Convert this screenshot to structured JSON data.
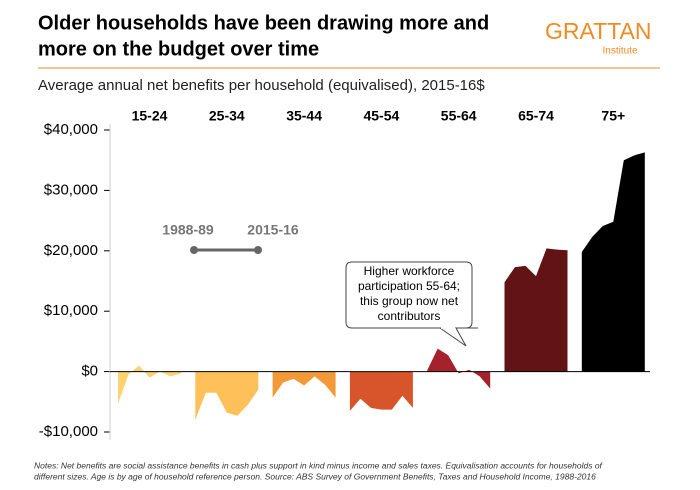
{
  "chart_data": {
    "type": "area-panels",
    "title": [
      "Older households have been drawing more and",
      "more on the budget over time"
    ],
    "subtitle": "Average annual net benefits per household (equivalised), 2015-16$",
    "logo": {
      "name": "GRATTAN",
      "sub": "Institute"
    },
    "categories": [
      "1988-89",
      null,
      null,
      null,
      null,
      null,
      "2015-16"
    ],
    "series": [
      {
        "name": "15-24",
        "color": "#fcd36f",
        "values": [
          -5300,
          -500,
          1000,
          -1000,
          0,
          -800,
          -300
        ]
      },
      {
        "name": "25-34",
        "color": "#fec15a",
        "values": [
          -8000,
          -3500,
          -3500,
          -6800,
          -7300,
          -5500,
          -3000
        ]
      },
      {
        "name": "35-44",
        "color": "#f39a38",
        "values": [
          -4300,
          -1800,
          -1200,
          -2300,
          -800,
          -2200,
          -4300
        ]
      },
      {
        "name": "45-54",
        "color": "#d8552b",
        "values": [
          -6500,
          -4500,
          -6000,
          -6300,
          -6300,
          -4000,
          -6000
        ]
      },
      {
        "name": "55-64",
        "color": "#a5212b",
        "values": [
          200,
          3800,
          2700,
          -300,
          300,
          -800,
          -2800
        ]
      },
      {
        "name": "65-74",
        "color": "#621316",
        "values": [
          14800,
          17300,
          17500,
          15800,
          20400,
          20200,
          20100
        ]
      },
      {
        "name": "75+",
        "color": "#000000",
        "values": [
          19800,
          22300,
          24100,
          24800,
          35000,
          35800,
          36300
        ]
      }
    ],
    "ylim": [
      -13000,
      41000
    ],
    "yticks": [
      {
        "value": -10000,
        "label": "-$10,000"
      },
      {
        "value": 0,
        "label": "$0"
      },
      {
        "value": 10000,
        "label": "$10,000"
      },
      {
        "value": 20000,
        "label": "$20,000"
      },
      {
        "value": 30000,
        "label": "$30,000"
      },
      {
        "value": 40000,
        "label": "$40,000"
      }
    ],
    "annotation": [
      "Higher workforce",
      "participation 55-64;",
      "this group now net",
      "contributors"
    ],
    "notes": [
      "Notes: Net benefits are social assistance benefits in cash plus support in kind minus income and sales taxes. Equivalisation accounts for households of",
      "different sizes. Age is by age of household reference person. Source: ABS Survey of Government Benefits, Taxes and Household Income, 1988-2016"
    ]
  }
}
